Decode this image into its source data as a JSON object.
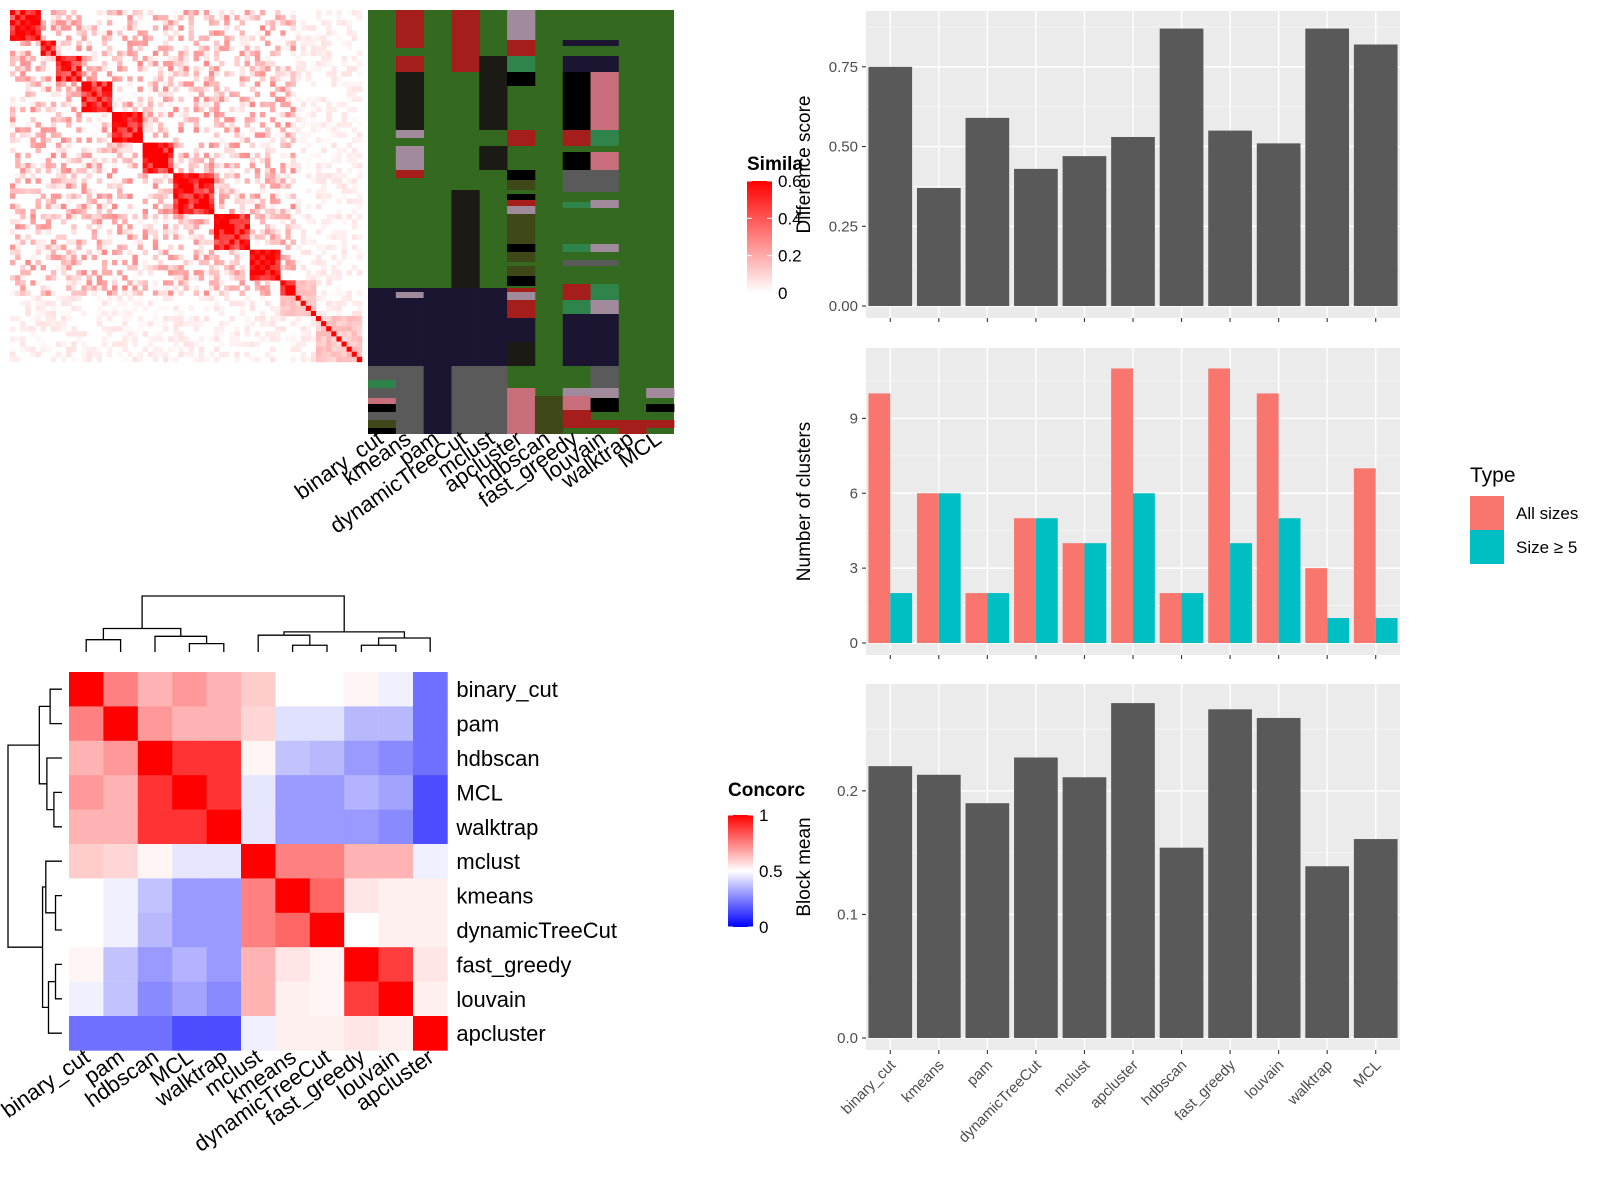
{
  "chart_data": [
    {
      "type": "heatmap",
      "name": "similarity_matrix",
      "rows": 69,
      "legend_title": "Simila",
      "legend_ticks": [
        "0.6",
        "0.4",
        "0.2",
        "0"
      ],
      "legend_range": [
        0,
        0.6
      ],
      "low_color": "#ffffff",
      "high_color": "#ff0000"
    },
    {
      "type": "heatmap",
      "name": "cluster_membership",
      "columns": [
        "binary_cut",
        "kmeans",
        "pam",
        "dynamicTreeCut",
        "mclust",
        "apcluster",
        "hdbscan",
        "fast_greedy",
        "louvain",
        "walktrap",
        "MCL"
      ],
      "palette": [
        "#336a1f",
        "#1b1531",
        "#5b5a5a",
        "#1c1a14",
        "#a51e1b",
        "#ad5a6b",
        "#a08a9c",
        "#2f844c",
        "#3e4818",
        "#000000",
        "#c96f7b"
      ]
    },
    {
      "type": "heatmap",
      "name": "concordance",
      "legend_title": "Concorc",
      "legend_ticks": [
        "1",
        "0.5",
        "0"
      ],
      "legend_range": [
        0,
        1
      ],
      "rows": [
        "binary_cut",
        "pam",
        "hdbscan",
        "MCL",
        "walktrap",
        "mclust",
        "kmeans",
        "dynamicTreeCut",
        "fast_greedy",
        "louvain",
        "apcluster"
      ],
      "columns": [
        "binary_cut",
        "pam",
        "hdbscan",
        "MCL",
        "walktrap",
        "mclust",
        "kmeans",
        "dynamicTreeCut",
        "fast_greedy",
        "louvain",
        "apcluster"
      ],
      "values": [
        [
          1.0,
          0.75,
          0.65,
          0.7,
          0.65,
          0.6,
          0.5,
          0.5,
          0.52,
          0.47,
          0.22
        ],
        [
          0.75,
          1.0,
          0.7,
          0.65,
          0.65,
          0.58,
          0.44,
          0.44,
          0.36,
          0.36,
          0.22
        ],
        [
          0.65,
          0.7,
          1.0,
          0.9,
          0.9,
          0.52,
          0.38,
          0.36,
          0.3,
          0.27,
          0.22
        ],
        [
          0.7,
          0.65,
          0.9,
          1.0,
          0.9,
          0.45,
          0.3,
          0.3,
          0.35,
          0.32,
          0.15
        ],
        [
          0.65,
          0.65,
          0.9,
          0.9,
          1.0,
          0.45,
          0.3,
          0.3,
          0.3,
          0.27,
          0.15
        ],
        [
          0.6,
          0.58,
          0.52,
          0.45,
          0.45,
          1.0,
          0.75,
          0.75,
          0.65,
          0.65,
          0.47
        ],
        [
          0.5,
          0.47,
          0.38,
          0.3,
          0.3,
          0.75,
          1.0,
          0.8,
          0.55,
          0.53,
          0.53
        ],
        [
          0.5,
          0.47,
          0.36,
          0.3,
          0.3,
          0.75,
          0.8,
          1.0,
          0.5,
          0.53,
          0.53
        ],
        [
          0.52,
          0.38,
          0.3,
          0.35,
          0.3,
          0.65,
          0.55,
          0.52,
          1.0,
          0.88,
          0.55
        ],
        [
          0.47,
          0.38,
          0.27,
          0.32,
          0.27,
          0.65,
          0.53,
          0.52,
          0.88,
          1.0,
          0.53
        ],
        [
          0.22,
          0.22,
          0.22,
          0.15,
          0.15,
          0.47,
          0.53,
          0.53,
          0.55,
          0.53,
          1.0
        ]
      ]
    },
    {
      "type": "bar",
      "name": "difference_score",
      "categories": [
        "binary_cut",
        "kmeans",
        "pam",
        "dynamicTreeCut",
        "mclust",
        "apcluster",
        "hdbscan",
        "fast_greedy",
        "louvain",
        "walktrap",
        "MCL"
      ],
      "values": [
        0.75,
        0.37,
        0.59,
        0.43,
        0.47,
        0.53,
        0.87,
        0.55,
        0.51,
        0.87,
        0.82
      ],
      "ylabel": "Difference score",
      "ylim": [
        0,
        0.9
      ],
      "yticks": [
        0,
        0.25,
        0.5,
        0.75
      ],
      "ytick_labels": [
        "0.00",
        "0.25",
        "0.50",
        "0.75"
      ],
      "bar_color": "#595959"
    },
    {
      "type": "bar",
      "name": "number_of_clusters",
      "categories": [
        "binary_cut",
        "kmeans",
        "pam",
        "dynamicTreeCut",
        "mclust",
        "apcluster",
        "hdbscan",
        "fast_greedy",
        "louvain",
        "walktrap",
        "MCL"
      ],
      "series": [
        {
          "name": "All sizes",
          "color": "#f8766d",
          "values": [
            10,
            6,
            2,
            5,
            4,
            11,
            2,
            11,
            10,
            3,
            7
          ]
        },
        {
          "name": "Size ≥ 5",
          "color": "#00bfc4",
          "values": [
            2,
            6,
            2,
            5,
            4,
            6,
            2,
            4,
            5,
            1,
            1
          ]
        }
      ],
      "ylabel": "Number of clusters",
      "ylim": [
        0,
        11.5
      ],
      "yticks": [
        0,
        3,
        6,
        9
      ],
      "ytick_labels": [
        "0",
        "3",
        "6",
        "9"
      ],
      "legend_title": "Type",
      "legend_position": "right"
    },
    {
      "type": "bar",
      "name": "block_mean",
      "categories": [
        "binary_cut",
        "kmeans",
        "pam",
        "dynamicTreeCut",
        "mclust",
        "apcluster",
        "hdbscan",
        "fast_greedy",
        "louvain",
        "walktrap",
        "MCL"
      ],
      "values": [
        0.22,
        0.213,
        0.19,
        0.227,
        0.211,
        0.271,
        0.154,
        0.266,
        0.259,
        0.139,
        0.161
      ],
      "ylabel": "Block mean",
      "ylim": [
        0,
        0.28
      ],
      "yticks": [
        0,
        0.1,
        0.2
      ],
      "ytick_labels": [
        "0.0",
        "0.1",
        "0.2"
      ],
      "bar_color": "#595959"
    }
  ]
}
